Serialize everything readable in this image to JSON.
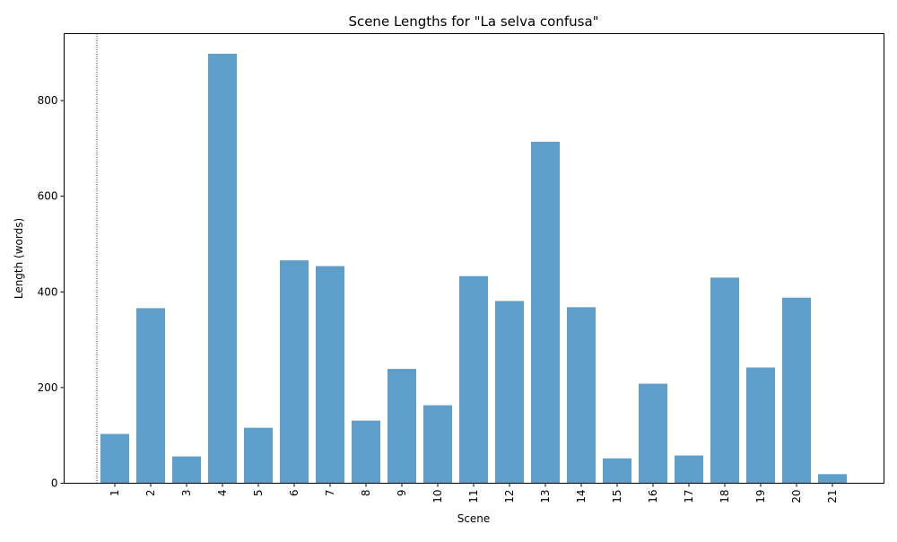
{
  "chart_data": {
    "type": "bar",
    "title": "Scene Lengths for \"La selva confusa\"",
    "xlabel": "Scene",
    "ylabel": "Length (words)",
    "categories": [
      "1",
      "2",
      "3",
      "4",
      "5",
      "6",
      "7",
      "8",
      "9",
      "10",
      "11",
      "12",
      "13",
      "14",
      "15",
      "16",
      "17",
      "18",
      "19",
      "20",
      "21"
    ],
    "values": [
      103,
      366,
      56,
      898,
      116,
      466,
      454,
      131,
      239,
      163,
      433,
      381,
      714,
      368,
      52,
      208,
      58,
      430,
      242,
      388,
      19
    ],
    "ylim": [
      0,
      940
    ],
    "yticks": [
      0,
      200,
      400,
      600,
      800
    ],
    "bar_color": "#5f9ecb",
    "x_tick_rotation": "vertical",
    "grid": false,
    "legend": "none",
    "reference_line": {
      "style": "dotted",
      "position": "left of scene 1"
    }
  }
}
